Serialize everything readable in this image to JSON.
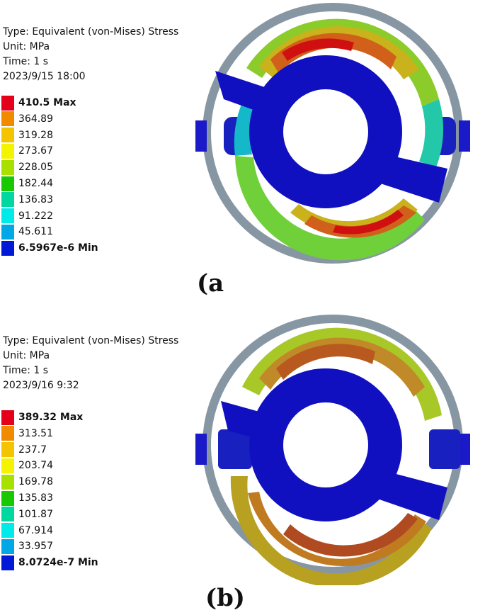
{
  "panels": [
    {
      "id": "a",
      "type_line": "Type: Equivalent (von-Mises) Stress",
      "unit_line": "Unit: MPa",
      "time_line": "Time: 1 s",
      "date_line": "2023/9/15 18:00",
      "legend": [
        "410.5 Max",
        "364.89",
        "319.28",
        "273.67",
        "228.05",
        "182.44",
        "136.83",
        "91.222",
        "45.611",
        "6.5967e-6 Min"
      ],
      "caption": "(a"
    },
    {
      "id": "b",
      "type_line": "Type: Equivalent (von-Mises) Stress",
      "unit_line": "Unit: MPa",
      "time_line": "Time: 1 s",
      "date_line": "2023/9/16 9:32",
      "legend": [
        "389.32 Max",
        "313.51",
        "237.7",
        "203.74",
        "169.78",
        "135.83",
        "101.87",
        "67.914",
        "33.957",
        "8.0724e-7 Min"
      ],
      "caption": "(b)"
    }
  ],
  "legend_colors": [
    "#e4001a",
    "#f28a00",
    "#f5c400",
    "#f4f400",
    "#a8e000",
    "#18c800",
    "#00d8a0",
    "#00eaea",
    "#00a8e6",
    "#0018d8"
  ]
}
